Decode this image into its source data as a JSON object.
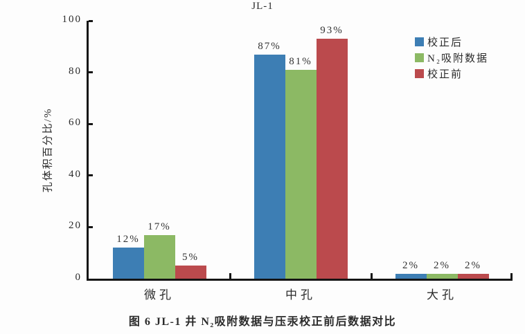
{
  "figure": {
    "caption": "图 6  JL-1 井 N₂吸附数据与压汞校正前后数据对比"
  },
  "chart_data": {
    "type": "bar",
    "title": "JL-1",
    "categories": [
      "微孔",
      "中孔",
      "大孔"
    ],
    "series": [
      {
        "name": "校正后",
        "color": "#3d7eb4",
        "values": [
          12,
          87,
          2
        ]
      },
      {
        "name": "N₂吸附数据",
        "color": "#8cb964",
        "values": [
          17,
          81,
          2
        ]
      },
      {
        "name": "校正前",
        "color": "#bb4a4d",
        "values": [
          5,
          93,
          2
        ]
      }
    ],
    "value_labels": [
      [
        "12%",
        "87%",
        "2%"
      ],
      [
        "17%",
        "81%",
        "2%"
      ],
      [
        "5%",
        "93%",
        "2%"
      ]
    ],
    "xlabel": "",
    "ylabel": "孔体积百分比/%",
    "ylim": [
      0,
      100
    ],
    "yticks": [
      0,
      20,
      40,
      60,
      80,
      100
    ],
    "grid": false,
    "legend_position": "top-right",
    "axis_color": "#151515"
  }
}
